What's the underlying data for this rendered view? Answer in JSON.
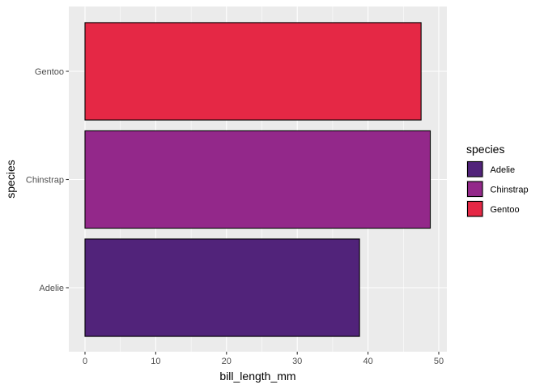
{
  "chart_data": {
    "type": "bar",
    "orientation": "horizontal",
    "categories": [
      "Adelie",
      "Chinstrap",
      "Gentoo"
    ],
    "values": [
      38.8,
      48.8,
      47.5
    ],
    "colors": [
      "#51237a",
      "#93288a",
      "#e52845"
    ],
    "xlabel": "bill_length_mm",
    "ylabel": "species",
    "xlim": [
      0,
      50
    ],
    "x_ticks": [
      "0",
      "10",
      "20",
      "30",
      "40",
      "50"
    ],
    "grid": true,
    "legend": {
      "title": "species",
      "position": "right",
      "entries": [
        "Adelie",
        "Chinstrap",
        "Gentoo"
      ]
    }
  }
}
